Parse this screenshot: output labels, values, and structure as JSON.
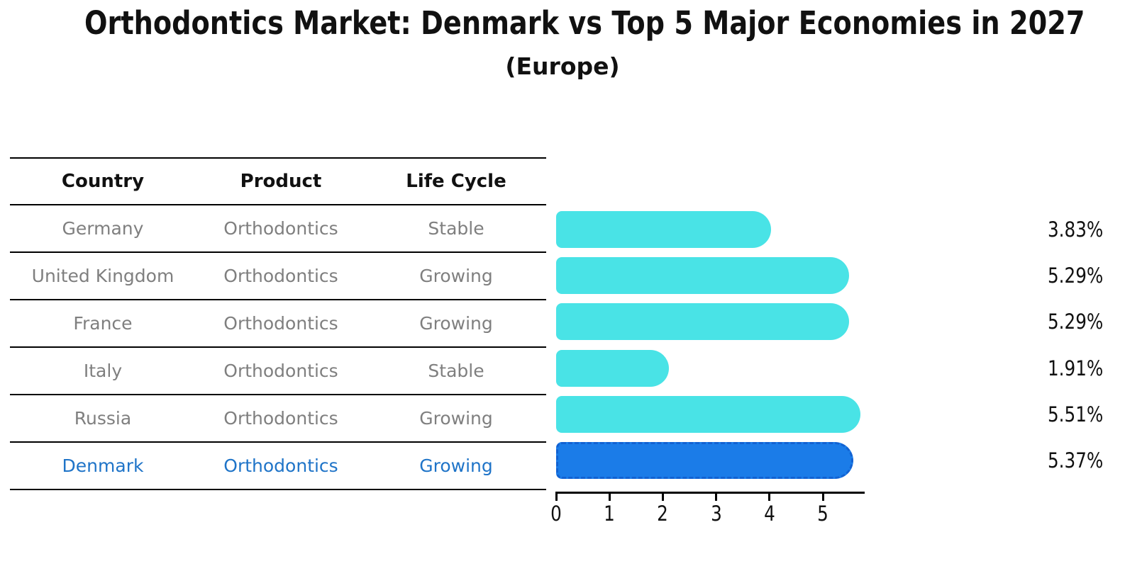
{
  "title": "Orthodontics Market: Denmark vs Top 5 Major Economies in 2027",
  "subtitle": "(Europe)",
  "table": {
    "headers": [
      "Country",
      "Product",
      "Life Cycle"
    ],
    "rows": [
      {
        "country": "Germany",
        "product": "Orthodontics",
        "life_cycle": "Stable",
        "highlight": false
      },
      {
        "country": "United Kingdom",
        "product": "Orthodontics",
        "life_cycle": "Growing",
        "highlight": false
      },
      {
        "country": "France",
        "product": "Orthodontics",
        "life_cycle": "Growing",
        "highlight": false
      },
      {
        "country": "Italy",
        "product": "Orthodontics",
        "life_cycle": "Stable",
        "highlight": false
      },
      {
        "country": "Russia",
        "product": "Orthodontics",
        "life_cycle": "Growing",
        "highlight": false
      },
      {
        "country": "Denmark",
        "product": "Orthodontics",
        "life_cycle": "Growing",
        "highlight": true
      }
    ]
  },
  "chart_data": {
    "type": "bar",
    "orientation": "horizontal",
    "title": "Orthodontics Market: Denmark vs Top 5 Major Economies in 2027",
    "subtitle": "(Europe)",
    "categories": [
      "Germany",
      "United Kingdom",
      "France",
      "Italy",
      "Russia",
      "Denmark"
    ],
    "values": [
      3.83,
      5.29,
      5.29,
      1.91,
      5.51,
      5.37
    ],
    "value_labels": [
      "3.83%",
      "5.29%",
      "5.29%",
      "1.91%",
      "5.51%",
      "5.37%"
    ],
    "x_ticks": [
      "0",
      "1",
      "2",
      "3",
      "4",
      "5"
    ],
    "xlim": [
      0,
      5.8
    ],
    "xlabel": "",
    "ylabel": "",
    "grid": false,
    "legend": false,
    "bar_color": "#49E3E6",
    "highlight_index": 5,
    "highlight_bar_color": "#1B7CE8",
    "highlight_border_color": "#1262D2"
  },
  "colors": {
    "background": "#FFFFFF",
    "table_header_text": "#111111",
    "table_text": "#7F7F7F",
    "highlight_text": "#1F74C8",
    "axis": "#000000",
    "value_text": "#111111"
  }
}
